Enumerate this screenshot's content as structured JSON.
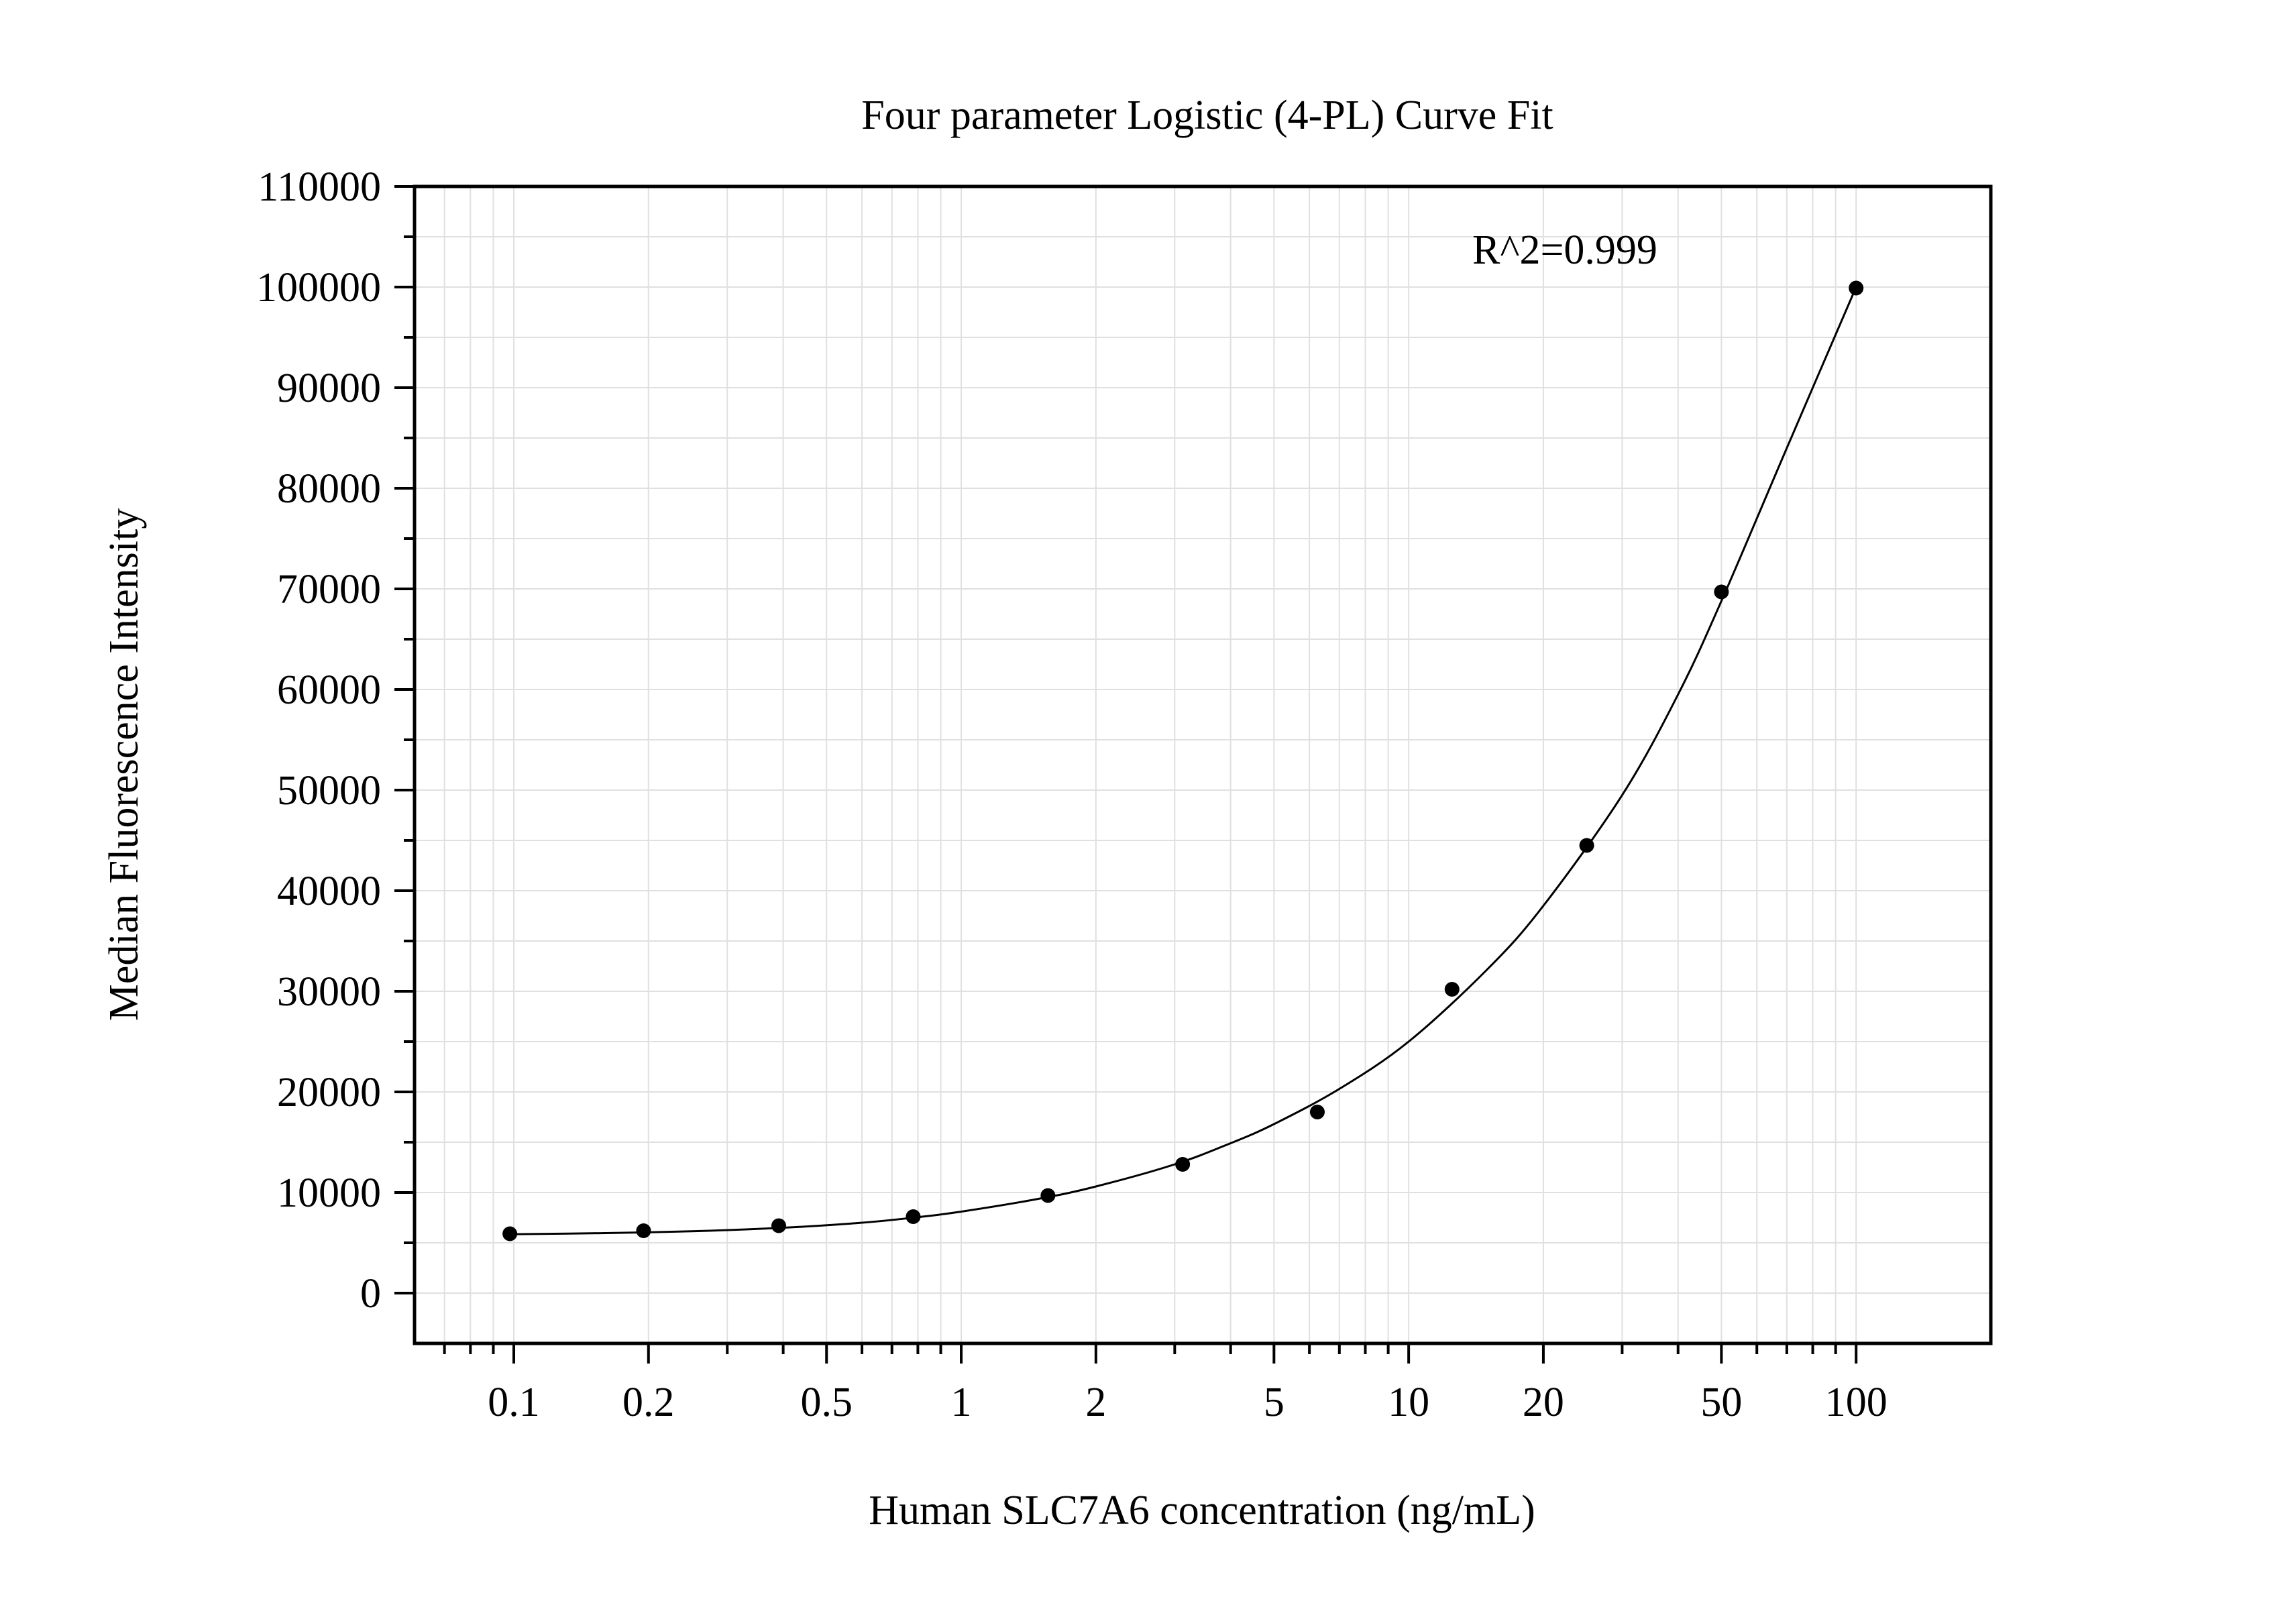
{
  "chart_data": {
    "type": "scatter",
    "title": "Four parameter Logistic (4-PL) Curve Fit",
    "xlabel": "Human SLC7A6 concentration (ng/mL)",
    "ylabel": "Median Fluorescence Intensity",
    "x_scale": "log",
    "y_scale": "linear",
    "xlim": [
      0.06,
      200
    ],
    "ylim": [
      -5000,
      110000
    ],
    "x_ticks": [
      0.1,
      0.2,
      0.5,
      1,
      2,
      5,
      10,
      20,
      50,
      100
    ],
    "x_tick_labels": [
      "0.1",
      "0.2",
      "0.5",
      "1",
      "2",
      "5",
      "10",
      "20",
      "50",
      "100"
    ],
    "y_ticks": [
      0,
      10000,
      20000,
      30000,
      40000,
      50000,
      60000,
      70000,
      80000,
      90000,
      100000,
      110000
    ],
    "y_tick_labels": [
      "0",
      "10000",
      "20000",
      "30000",
      "40000",
      "50000",
      "60000",
      "70000",
      "80000",
      "90000",
      "100000",
      "110000"
    ],
    "grid": true,
    "annotation": "R^2=0.999",
    "series": [
      {
        "x": [
          0.098,
          0.195,
          0.391,
          0.781,
          1.5625,
          3.125,
          6.25,
          12.5,
          25,
          50,
          100
        ],
        "y": [
          5900,
          6200,
          6700,
          7600,
          9700,
          12800,
          18000,
          30200,
          44500,
          69700,
          99900
        ]
      }
    ],
    "fit_curve": {
      "model": "4PL",
      "x": [
        0.098,
        0.15,
        0.25,
        0.4,
        0.6,
        0.8,
        1.0,
        1.5,
        2.0,
        3.0,
        4.0,
        5.0,
        7.0,
        10,
        15,
        20,
        30,
        40,
        50,
        70,
        100
      ],
      "y": [
        5850,
        5950,
        6150,
        6500,
        7000,
        7550,
        8100,
        9400,
        10600,
        12800,
        14900,
        16800,
        20300,
        25000,
        32200,
        38500,
        49500,
        59500,
        68800,
        84000,
        100000
      ]
    },
    "colors": {
      "points": "#000000",
      "curve": "#000000",
      "grid": "#e0e0e0",
      "frame": "#000000"
    }
  }
}
